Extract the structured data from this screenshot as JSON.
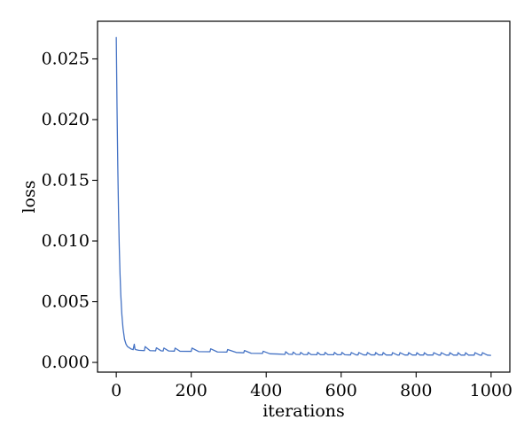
{
  "chart_data": {
    "type": "line",
    "title": "",
    "xlabel": "iterations",
    "ylabel": "loss",
    "xlim": [
      -50,
      1050
    ],
    "ylim": [
      -0.0008,
      0.0281
    ],
    "xticks": [
      0,
      200,
      400,
      600,
      800,
      1000
    ],
    "xtick_labels": [
      "0",
      "200",
      "400",
      "600",
      "800",
      "1000"
    ],
    "yticks": [
      0.0,
      0.005,
      0.01,
      0.015,
      0.02,
      0.025
    ],
    "ytick_labels": [
      "0.000",
      "0.005",
      "0.010",
      "0.015",
      "0.020",
      "0.025"
    ],
    "grid": false,
    "series": [
      {
        "color": "#4472c4",
        "x": [
          0,
          2,
          4,
          6,
          8,
          10,
          12,
          15,
          18,
          22,
          26,
          30,
          35,
          40,
          45,
          48,
          50,
          52,
          60,
          70,
          75,
          77,
          90,
          100,
          105,
          107,
          120,
          125,
          127,
          140,
          155,
          157,
          170,
          200,
          202,
          220,
          250,
          252,
          270,
          295,
          297,
          320,
          340,
          342,
          360,
          390,
          392,
          410,
          430,
          450,
          452,
          460,
          470,
          472,
          480,
          490,
          492,
          500,
          510,
          512,
          520,
          530,
          535,
          537,
          545,
          555,
          557,
          565,
          580,
          582,
          590,
          600,
          602,
          610,
          620,
          625,
          627,
          640,
          645,
          647,
          660,
          668,
          670,
          680,
          690,
          692,
          700,
          710,
          712,
          720,
          730,
          735,
          737,
          750,
          755,
          757,
          770,
          778,
          780,
          790,
          800,
          802,
          810,
          820,
          822,
          830,
          840,
          845,
          847,
          860,
          865,
          867,
          880,
          888,
          890,
          900,
          910,
          912,
          920,
          930,
          932,
          940,
          950,
          955,
          957,
          970,
          975,
          977,
          990,
          1000
        ],
        "y": [
          0.0268,
          0.021,
          0.0162,
          0.0124,
          0.0095,
          0.0073,
          0.0056,
          0.0039,
          0.0028,
          0.0019,
          0.0015,
          0.0013,
          0.0012,
          0.0011,
          0.00105,
          0.0015,
          0.0011,
          0.00105,
          0.001,
          0.00098,
          0.00097,
          0.0013,
          0.00097,
          0.00096,
          0.00095,
          0.0012,
          0.00095,
          0.00094,
          0.00118,
          0.00094,
          0.00093,
          0.00118,
          0.00092,
          0.00091,
          0.00118,
          0.00089,
          0.00088,
          0.00112,
          0.00086,
          0.00085,
          0.00106,
          0.00082,
          0.00079,
          0.00098,
          0.00075,
          0.00074,
          0.00092,
          0.00071,
          0.00069,
          0.00066,
          0.00088,
          0.00068,
          0.00066,
          0.00085,
          0.00066,
          0.00065,
          0.00082,
          0.00065,
          0.00064,
          0.00082,
          0.00064,
          0.00064,
          0.00063,
          0.00082,
          0.00063,
          0.00063,
          0.00082,
          0.00063,
          0.00063,
          0.00082,
          0.00063,
          0.00063,
          0.00082,
          0.00063,
          0.00062,
          0.00062,
          0.00081,
          0.00062,
          0.00062,
          0.00081,
          0.00062,
          0.00062,
          0.00081,
          0.00062,
          0.00062,
          0.00081,
          0.00062,
          0.00062,
          0.00081,
          0.00061,
          0.00061,
          0.00061,
          0.0008,
          0.00061,
          0.00061,
          0.0008,
          0.00061,
          0.00061,
          0.0008,
          0.00061,
          0.00061,
          0.0008,
          0.00061,
          0.00061,
          0.0008,
          0.00061,
          0.00061,
          0.00061,
          0.0008,
          0.00061,
          0.0006,
          0.0008,
          0.0006,
          0.0006,
          0.0008,
          0.0006,
          0.0006,
          0.0008,
          0.0006,
          0.0006,
          0.0008,
          0.0006,
          0.0006,
          0.0006,
          0.0008,
          0.0006,
          0.0006,
          0.0008,
          0.0006,
          0.00058
        ]
      }
    ]
  }
}
